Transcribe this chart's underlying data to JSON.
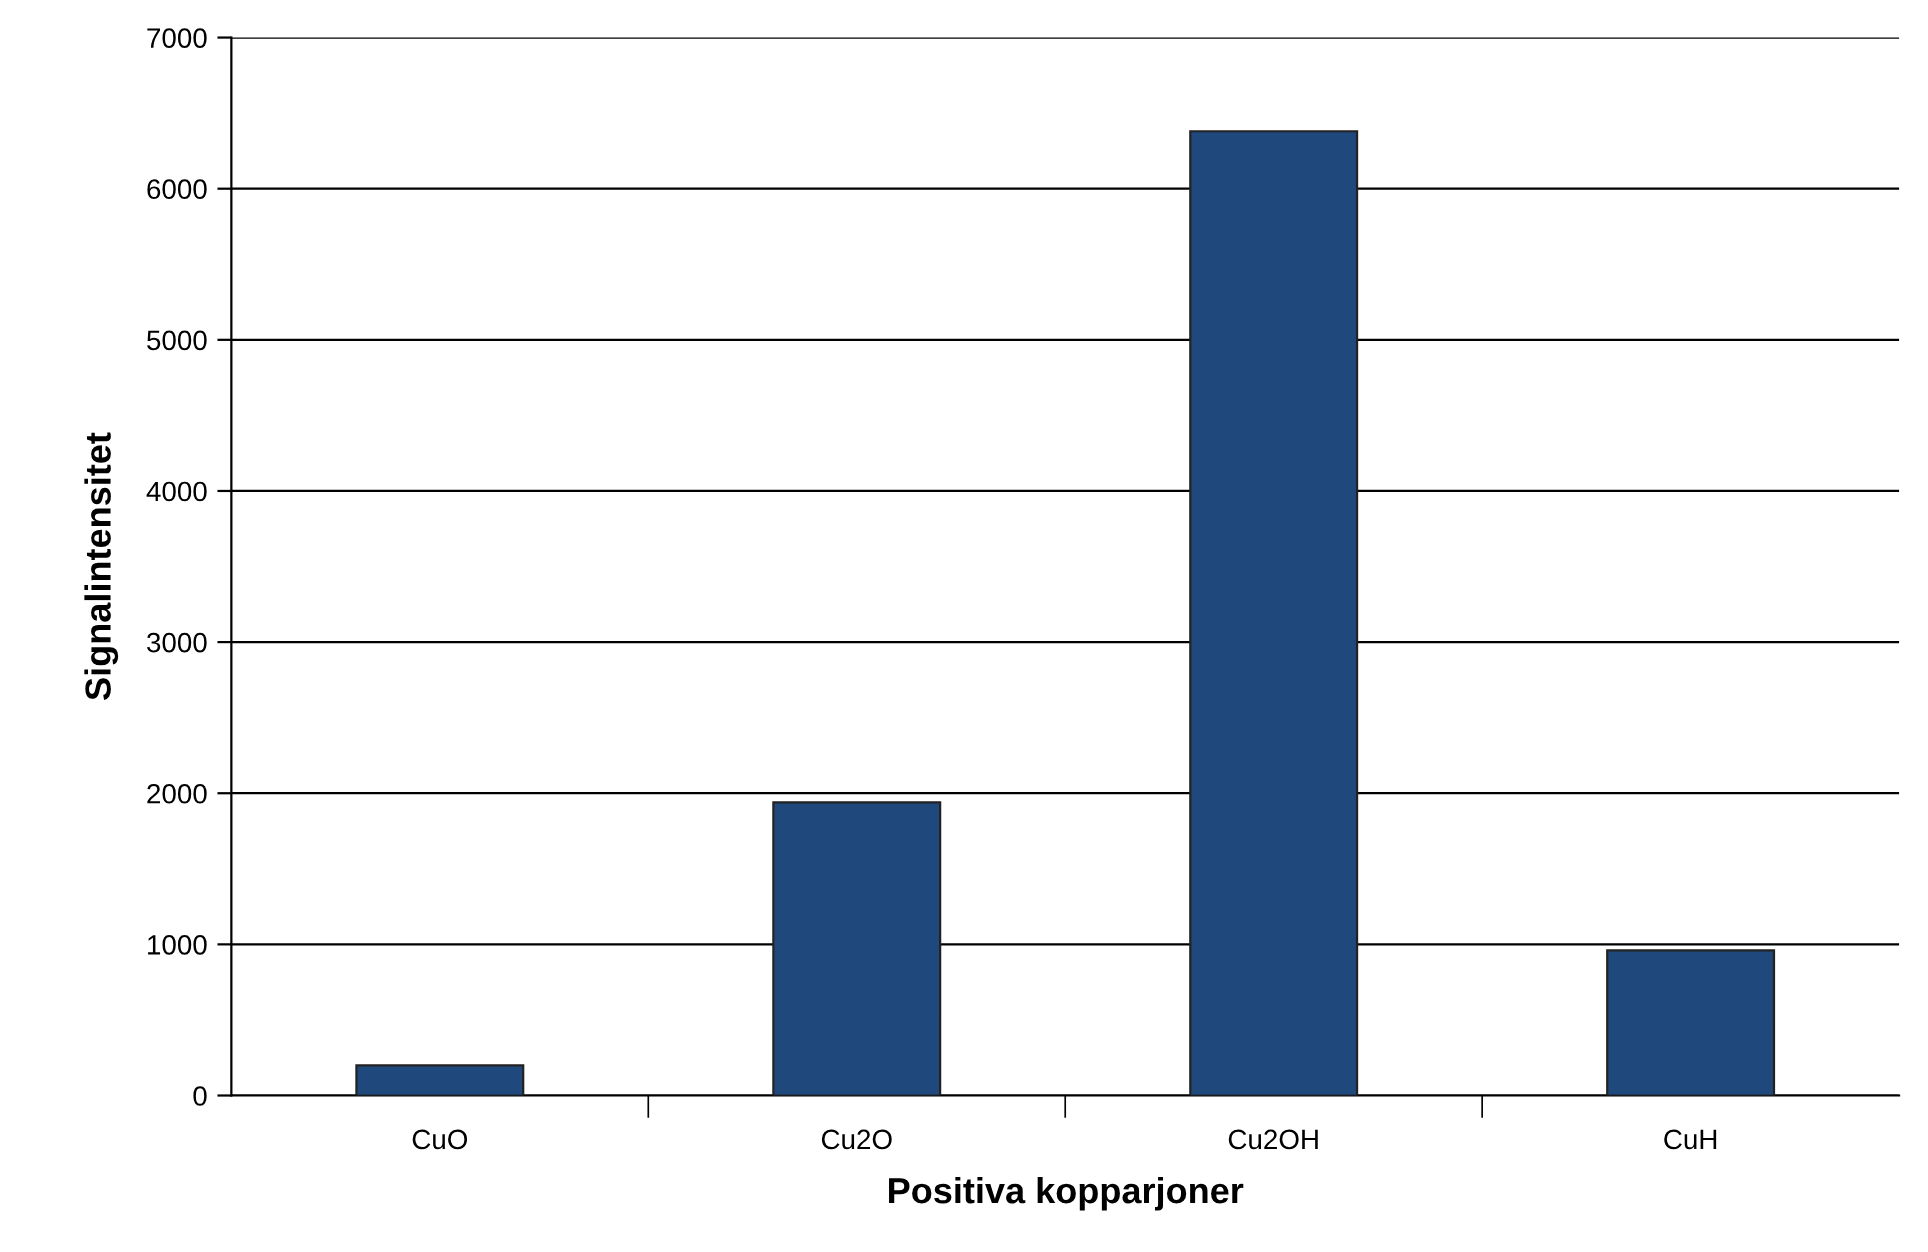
{
  "chart_data": {
    "type": "bar",
    "xlabel": "Positiva kopparjoner",
    "ylabel": "Signalintensitet",
    "categories": [
      "CuO",
      "Cu2O",
      "Cu2OH",
      "CuH"
    ],
    "values": [
      200,
      1940,
      6380,
      960
    ],
    "color": "#1f497d",
    "ylim": [
      0,
      7000
    ],
    "yticks": [
      0,
      1000,
      2000,
      3000,
      4000,
      5000,
      6000,
      7000
    ],
    "grid": "y"
  }
}
